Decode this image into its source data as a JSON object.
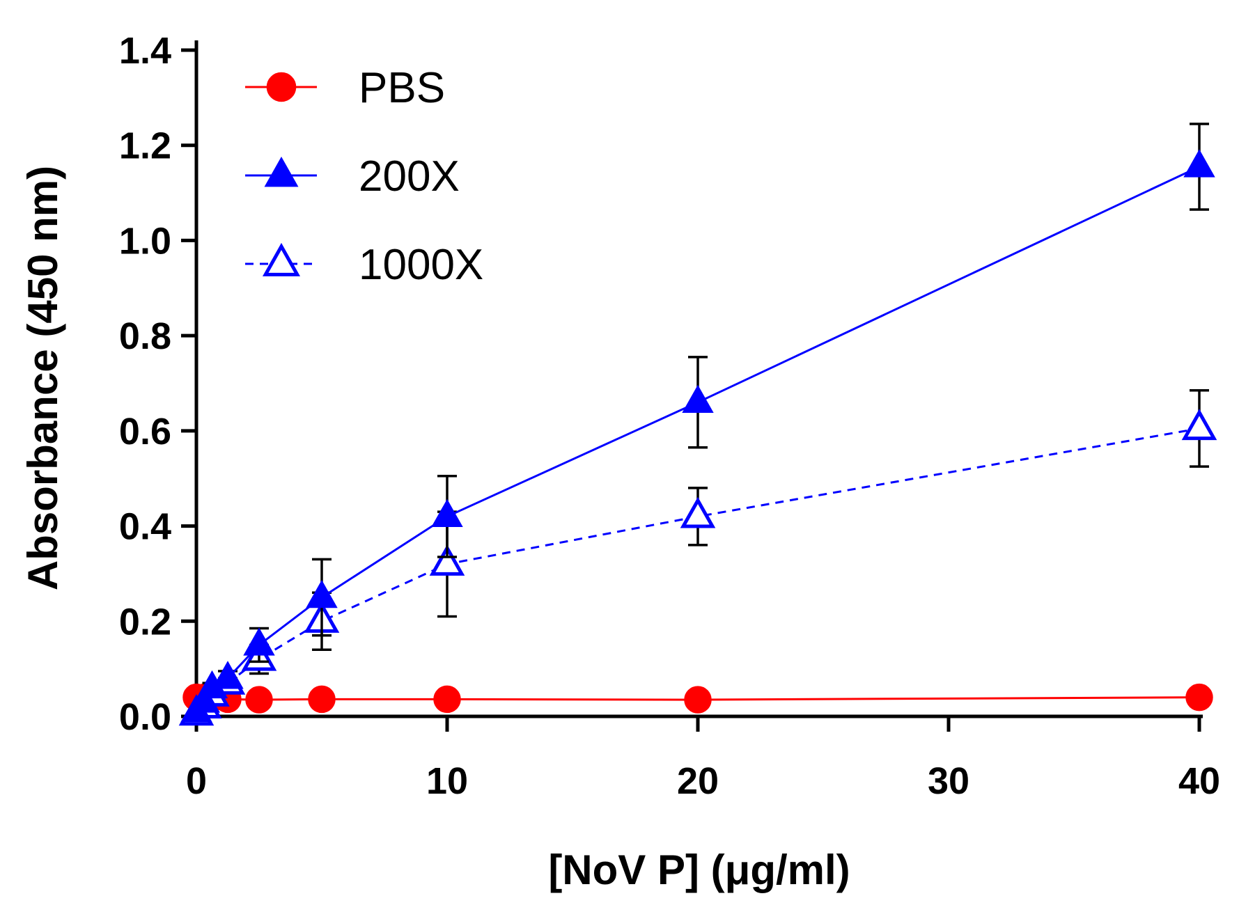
{
  "chart_data": {
    "type": "line",
    "title": "",
    "xlabel": "[NoV P] (μg/ml)",
    "ylabel": "Absorbance (450 nm)",
    "xlim": [
      0,
      40
    ],
    "ylim": [
      0,
      1.4
    ],
    "xticks": [
      0,
      10,
      20,
      30,
      40
    ],
    "xtick_labels": [
      "0",
      "10",
      "20",
      "30",
      "40"
    ],
    "yticks": [
      0.0,
      0.2,
      0.4,
      0.6,
      0.8,
      1.0,
      1.2,
      1.4
    ],
    "ytick_labels": [
      "0.0",
      "0.2",
      "0.4",
      "0.6",
      "0.8",
      "1.0",
      "1.2",
      "1.4"
    ],
    "grid": false,
    "legend_position": "top-left",
    "series": [
      {
        "name": "PBS",
        "color": "#ff0000",
        "marker": "circle",
        "filled": true,
        "line_style": "solid",
        "x": [
          0,
          0.3125,
          0.625,
          1.25,
          2.5,
          5,
          10,
          20,
          40
        ],
        "y": [
          0.04,
          0.04,
          0.038,
          0.036,
          0.035,
          0.036,
          0.036,
          0.035,
          0.04
        ],
        "err": [
          0,
          0,
          0,
          0,
          0,
          0,
          0,
          0,
          0
        ]
      },
      {
        "name": "200X",
        "color": "#0000ff",
        "marker": "triangle",
        "filled": true,
        "line_style": "solid",
        "x": [
          0,
          0.3125,
          0.625,
          1.25,
          2.5,
          5,
          10,
          20,
          40
        ],
        "y": [
          0.01,
          0.03,
          0.06,
          0.08,
          0.15,
          0.25,
          0.42,
          0.66,
          1.155
        ],
        "err": [
          0,
          0,
          0.01,
          0.015,
          0.035,
          0.08,
          0.085,
          0.095,
          0.09
        ]
      },
      {
        "name": "1000X",
        "color": "#0000ff",
        "marker": "triangle",
        "filled": false,
        "line_style": "dashed",
        "x": [
          0,
          0.3125,
          0.625,
          1.25,
          2.5,
          5,
          10,
          20,
          40
        ],
        "y": [
          0.005,
          0.02,
          0.045,
          0.07,
          0.12,
          0.2,
          0.32,
          0.42,
          0.605
        ],
        "err": [
          0,
          0,
          0.005,
          0.01,
          0.03,
          0.06,
          0.11,
          0.06,
          0.08
        ]
      }
    ]
  }
}
